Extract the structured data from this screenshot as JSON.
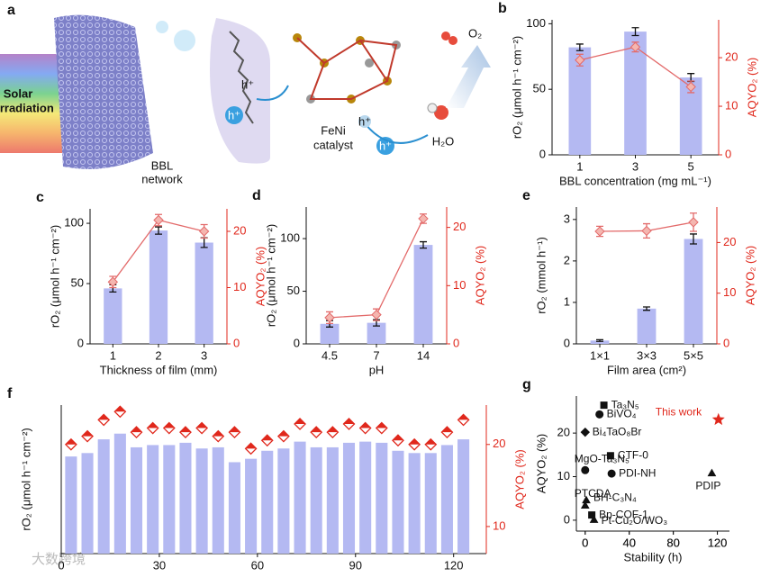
{
  "schematic": {
    "label": "a",
    "solar": [
      "Solar",
      "irradiation"
    ],
    "bbl": [
      "BBL",
      "network"
    ],
    "catalyst": [
      "FeNi",
      "catalyst"
    ],
    "holes": [
      "h⁺",
      "h⁺",
      "h⁺",
      "h⁺"
    ],
    "o2": "O₂",
    "h2o": "H₂O"
  },
  "watermark": "大数跨境",
  "chart_data": [
    {
      "type": "bar",
      "label": "b",
      "xlabel": "BBL concentration (mg mL⁻¹)",
      "ylabel": "rO₂ (μmol h⁻¹ cm⁻²)",
      "y2label": "AQYO₂ (%)",
      "categories": [
        "1",
        "3",
        "5"
      ],
      "ylim": [
        0,
        103
      ],
      "yticks": [
        0,
        50,
        100
      ],
      "y2lim": [
        0,
        27.8
      ],
      "y2ticks": [
        0,
        10,
        20
      ],
      "series": [
        {
          "color": "#b4b9f2",
          "values": [
            82,
            94,
            59
          ],
          "errors": [
            2.5,
            3,
            3
          ]
        },
        {
          "axis": "y2",
          "color": "#e36b6b",
          "values": [
            19.5,
            22.2,
            14
          ],
          "errors": [
            1.2,
            1,
            1.2
          ]
        }
      ]
    },
    {
      "type": "bar",
      "label": "c",
      "xlabel": "Thickness of film (mm)",
      "ylabel": "rO₂ (μmol h⁻¹ cm⁻²)",
      "y2label": "AQYO₂ (%)",
      "categories": [
        "1",
        "2",
        "3"
      ],
      "ylim": [
        0,
        112
      ],
      "yticks": [
        0,
        50,
        100
      ],
      "y2lim": [
        0,
        24
      ],
      "y2ticks": [
        0,
        10,
        20
      ],
      "series": [
        {
          "color": "#b4b9f2",
          "values": [
            46,
            94,
            84
          ],
          "errors": [
            3,
            3,
            4
          ]
        },
        {
          "axis": "y2",
          "color": "#e36b6b",
          "values": [
            11,
            22,
            20
          ],
          "errors": [
            1,
            1,
            1.2
          ]
        }
      ]
    },
    {
      "type": "bar",
      "label": "d",
      "xlabel": "pH",
      "ylabel": "rO₂ (μmol h⁻¹ cm⁻²)",
      "y2label": "AQYO₂ (%)",
      "categories": [
        "4.5",
        "7",
        "14"
      ],
      "ylim": [
        0,
        130
      ],
      "yticks": [
        0,
        50,
        100
      ],
      "y2lim": [
        0,
        23.5
      ],
      "y2ticks": [
        0,
        10,
        20
      ],
      "series": [
        {
          "color": "#b4b9f2",
          "values": [
            19,
            20,
            94
          ],
          "errors": [
            3,
            3,
            3
          ]
        },
        {
          "axis": "y2",
          "color": "#e36b6b",
          "values": [
            4.5,
            5,
            21.5
          ],
          "errors": [
            1,
            1,
            0.8
          ]
        }
      ]
    },
    {
      "type": "bar",
      "label": "e",
      "xlabel": "Film area (cm²)",
      "ylabel": "rO₂ (mmol h⁻¹)",
      "y2label": "AQYO₂ (%)",
      "categories": [
        "1×1",
        "3×3",
        "5×5"
      ],
      "ylim": [
        0,
        3.3
      ],
      "yticks": [
        0,
        1,
        2,
        3
      ],
      "y2lim": [
        0,
        27
      ],
      "y2ticks": [
        0,
        10,
        20
      ],
      "series": [
        {
          "color": "#b4b9f2",
          "values": [
            0.08,
            0.85,
            2.53
          ],
          "errors": [
            0.02,
            0.04,
            0.12
          ]
        },
        {
          "axis": "y2",
          "color": "#e36b6b",
          "values": [
            22.2,
            22.3,
            24
          ],
          "errors": [
            1,
            1.4,
            1.8
          ]
        }
      ]
    },
    {
      "type": "bar",
      "label": "f",
      "xlabel": "Time (h)",
      "ylabel": "rO₂ (μmol h⁻¹ cm⁻²)",
      "y2label": "AQYO₂ (%)",
      "x": [
        3,
        8,
        13,
        18,
        23,
        28,
        33,
        38,
        43,
        48,
        53,
        58,
        63,
        68,
        73,
        78,
        83,
        88,
        93,
        98,
        103,
        108,
        113,
        118,
        123
      ],
      "xlim": [
        0,
        130
      ],
      "xticks": [
        0,
        30,
        60,
        90,
        120
      ],
      "ylim": [
        0,
        130
      ],
      "y2lim": [
        6.7,
        24.8
      ],
      "y2ticks": [
        10,
        20
      ],
      "series": [
        {
          "color": "#b4b9f2",
          "values": [
            85,
            88,
            100,
            105,
            93,
            95,
            95,
            97,
            92,
            93,
            80,
            83,
            90,
            92,
            98,
            93,
            93,
            97,
            98,
            97,
            90,
            88,
            88,
            95,
            100
          ]
        },
        {
          "axis": "y2",
          "color": "#e0281c",
          "values": [
            20,
            21,
            23,
            24,
            21.5,
            22,
            22,
            21.5,
            22,
            21,
            21.5,
            19.5,
            20.5,
            21,
            22.5,
            21.5,
            21.5,
            22.5,
            22,
            22,
            20.5,
            20,
            20,
            21.5,
            23
          ]
        }
      ]
    },
    {
      "type": "scatter",
      "label": "g",
      "xlabel": "Stability (h)",
      "ylabel": "AQYO₂ (%)",
      "xlim": [
        -8,
        131
      ],
      "xticks": [
        0,
        40,
        80,
        120
      ],
      "ylim": [
        -2.5,
        28.5
      ],
      "yticks": [
        0,
        10,
        20
      ],
      "point_labels": [
        "Ta₃N₅",
        "BiVO₄",
        "Bi₄TaO₈Br",
        "CTF-0",
        "MgO-Ta₃N₅",
        "PDI-NH",
        "PDIP",
        "PTCDA",
        "BH-C₃N₄",
        "Bp-COF-1",
        "Pt-Cu₂O/WO₃",
        "This work"
      ],
      "x": [
        17,
        13,
        0,
        23,
        0,
        24,
        115,
        0,
        1,
        6,
        8,
        121
      ],
      "values": [
        26.4,
        24.3,
        20.2,
        14.8,
        11.5,
        10.7,
        10.9,
        3.5,
        4.7,
        1.2,
        0.2,
        23.1
      ],
      "colors": [
        "#111",
        "#111",
        "#111",
        "#111",
        "#111",
        "#111",
        "#111",
        "#111",
        "#111",
        "#111",
        "#111",
        "#e0281c"
      ],
      "markers": [
        "square",
        "circle",
        "diamond",
        "square",
        "circle",
        "circle",
        "triangle",
        "triangle",
        "triangle",
        "square",
        "triangle",
        "star"
      ]
    }
  ]
}
